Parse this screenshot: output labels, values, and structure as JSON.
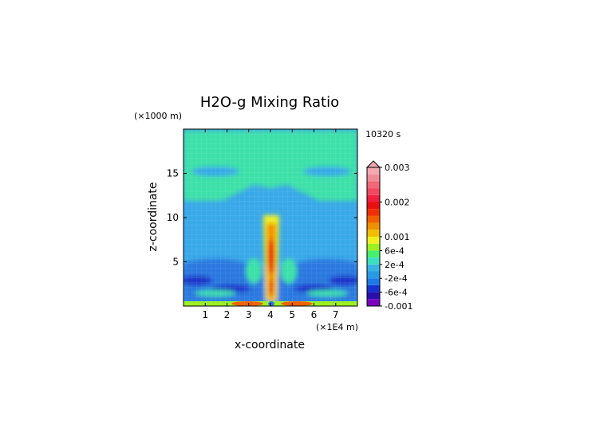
{
  "chart_data": {
    "type": "heatmap",
    "title": "H2O-g Mixing Ratio",
    "xlabel": "x-coordinate",
    "ylabel": "z-coordinate",
    "x_unit": "(×1E4 m)",
    "y_unit": "(×1000 m)",
    "time_label": "10320 s",
    "xlim": [
      0,
      8
    ],
    "ylim": [
      0,
      20
    ],
    "x_ticks": [
      1,
      2,
      3,
      4,
      5,
      6,
      7
    ],
    "y_ticks": [
      5,
      10,
      15
    ],
    "colorbar": {
      "levels": [
        -0.001,
        -0.0008,
        -0.0006,
        -0.0004,
        -0.0002,
        0,
        0.0002,
        0.0004,
        0.0006,
        0.0008,
        0.001,
        0.0012,
        0.0014,
        0.0016,
        0.0018,
        0.002,
        0.0022,
        0.0024,
        0.0026,
        0.0028,
        0.003
      ],
      "colors": [
        "#7a00c0",
        "#2810a8",
        "#1830d0",
        "#1e78e6",
        "#2a9ae6",
        "#38b4e0",
        "#3ce0c0",
        "#44f070",
        "#9cf020",
        "#f0f020",
        "#f0c000",
        "#f09000",
        "#f06000",
        "#f03000",
        "#e81010",
        "#f02040",
        "#f04860",
        "#f06878",
        "#f08c98",
        "#f4a8b0"
      ],
      "tick_labels": [
        {
          "value": 0.003,
          "label": "0.003"
        },
        {
          "value": 0.002,
          "label": "0.002"
        },
        {
          "value": 0.001,
          "label": "0.001"
        },
        {
          "value": 0.0006,
          "label": "6e-4"
        },
        {
          "value": 0.0002,
          "label": "2e-4"
        },
        {
          "value": -0.0002,
          "label": "-2e-4"
        },
        {
          "value": -0.0006,
          "label": "-6e-4"
        },
        {
          "value": -0.001,
          "label": "-0.001"
        }
      ],
      "extend_top": true
    },
    "field_description_colors": {
      "background": "#38a8e8",
      "upper_band": "#3ce0a8",
      "lower_band": "#2a78e0",
      "deep": "#1a30c8",
      "plume_low": "#f0f020",
      "plume_mid": "#f09000",
      "plume_core": "#e82010"
    }
  }
}
